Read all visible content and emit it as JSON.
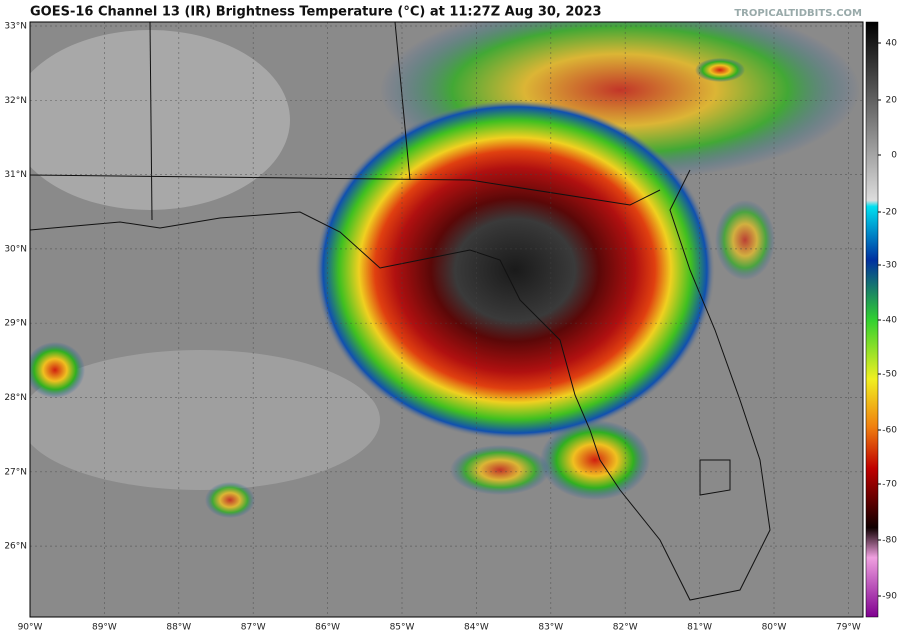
{
  "header": {
    "title": "GOES-16 Channel 13 (IR) Brightness Temperature (°C) at 11:27Z Aug 30, 2023",
    "credit": "TROPICALTIDBITS.COM"
  },
  "map": {
    "lat_labels": [
      "33°N",
      "32°N",
      "31°N",
      "30°N",
      "29°N",
      "28°N",
      "27°N",
      "26°N"
    ],
    "lon_labels": [
      "90°W",
      "89°W",
      "88°W",
      "87°W",
      "86°W",
      "85°W",
      "84°W",
      "83°W",
      "82°W",
      "81°W",
      "80°W",
      "79°W"
    ]
  },
  "colorbar": {
    "ticks": [
      40,
      20,
      0,
      -20,
      -30,
      -40,
      -50,
      -60,
      -70,
      -80,
      -90
    ]
  }
}
